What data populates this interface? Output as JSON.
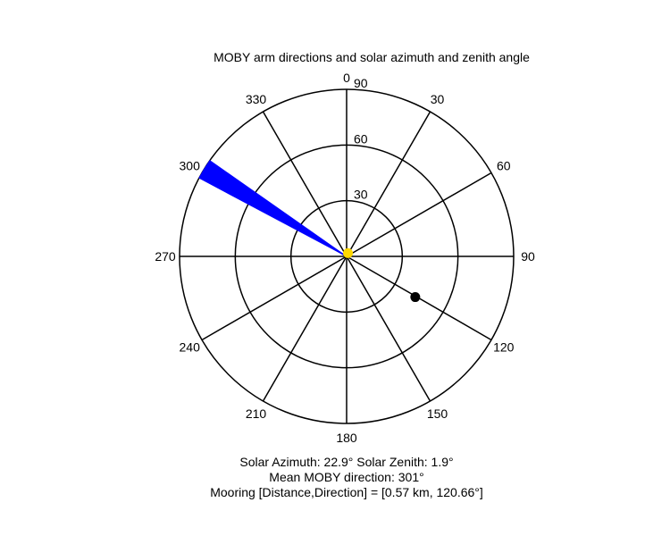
{
  "chart_data": {
    "type": "polar",
    "title": "MOBY arm directions and solar azimuth and zenith angle",
    "angle_direction": "clockwise",
    "zero_at": "top",
    "angle_ticks": [
      0,
      30,
      60,
      90,
      120,
      150,
      180,
      210,
      240,
      270,
      300,
      330
    ],
    "angle_tick_labels": [
      "0",
      "30",
      "60",
      "90",
      "120",
      "150",
      "180",
      "210",
      "240",
      "270",
      "300",
      "330"
    ],
    "radial_ticks": [
      30,
      60,
      90
    ],
    "radial_tick_labels": [
      "30",
      "60",
      "90"
    ],
    "rmax": 90,
    "moby_arm_wedge": {
      "angle_from": 298,
      "angle_to": 305,
      "r": 90,
      "color": "#0000ff"
    },
    "sun_point": {
      "azimuth": 22.9,
      "zenith": 1.9,
      "color": "#ffd800"
    },
    "mooring_point": {
      "direction": 120.66,
      "r": 43,
      "color": "#000000"
    },
    "grid": true
  },
  "info": {
    "solar_line": "Solar Azimuth: 22.9°   Solar Zenith: 1.9°",
    "moby_line": "Mean MOBY direction: 301°",
    "mooring_line": "Mooring [Distance,Direction] = [0.57 km, 120.66°]"
  }
}
